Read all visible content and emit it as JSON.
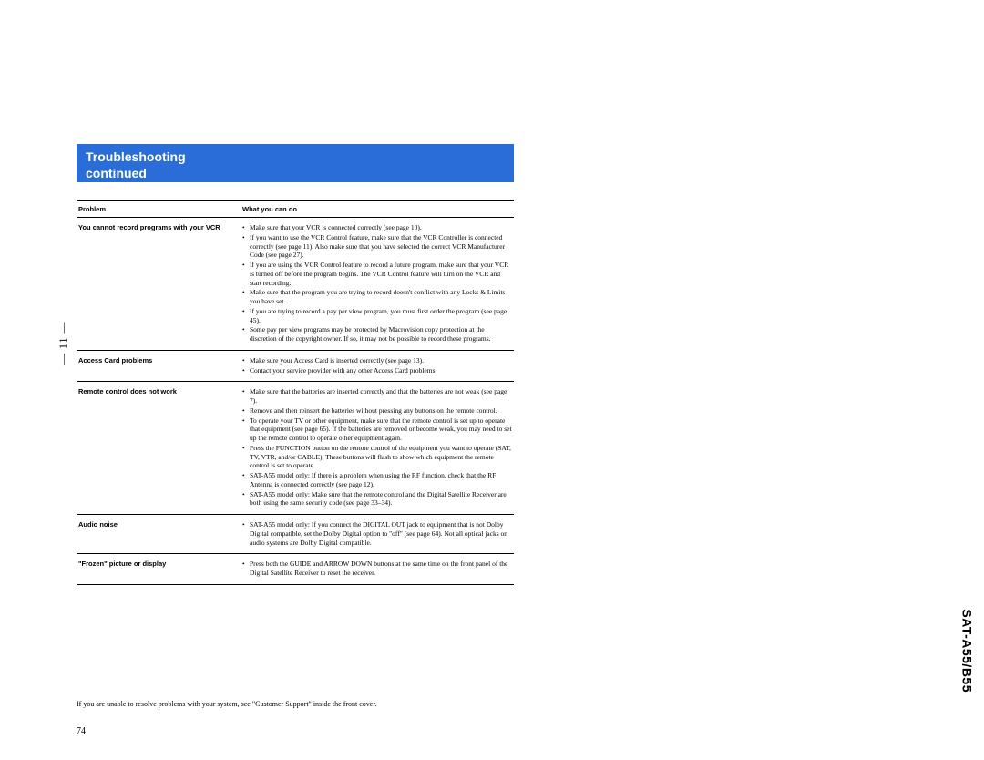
{
  "banner": {
    "line1": "Troubleshooting",
    "line2": "continued"
  },
  "table": {
    "headers": {
      "problem": "Problem",
      "solution": "What you can do"
    },
    "rows": [
      {
        "problem": "You cannot record programs with your VCR",
        "solutions": [
          "Make sure that your VCR is connected correctly (see page 10).",
          "If you want to use the VCR Control feature, make sure that the VCR Controller is connected correctly (see page 11). Also make sure that you have selected the correct VCR Manufacturer Code (see page 27).",
          "If you are using the VCR Control feature to record a future program, make sure that your VCR is turned off before the program begins. The VCR Control feature will turn on the VCR and start recording.",
          "Make sure that the program you are trying to record doesn't conflict with any Locks & Limits you have set.",
          "If you are trying to record a pay per view program, you must first order the program (see page 45).",
          "Some pay per view programs may be protected by Macrovision copy protection at the discretion of the copyright owner. If so, it may not be possible to record these programs."
        ]
      },
      {
        "problem": "Access Card problems",
        "solutions": [
          "Make sure your Access Card is inserted correctly (see page 13).",
          "Contact your service provider with any other Access Card problems."
        ]
      },
      {
        "problem": "Remote control does not work",
        "solutions": [
          "Make sure that the batteries are inserted correctly and that the batteries are not weak (see page 7).",
          "Remove and then reinsert the batteries without pressing any buttons on the remote control.",
          "To operate your TV or other equipment, make sure that the remote control is set up to operate that equipment (see page 65). If the batteries are removed or become weak, you may need to set up the remote control to operate other equipment again.",
          "Press the FUNCTION button on the remote control of the equipment you want to operate (SAT, TV, VTR, and/or CABLE). These buttons will flash to show which equipment the remote control is set to operate.",
          "SAT-A55 model only: If there is a problem when using the RF function, check that the RF Antenna is connected correctly (see page 12).",
          "SAT-A55 model only: Make sure that the remote control and the Digital Satellite Receiver are both using the same security code (see page 33–34)."
        ]
      },
      {
        "problem": "Audio noise",
        "solutions": [
          "SAT-A55 model only: If you connect the DIGITAL OUT jack to equipment that is not Dolby Digital compatible, set the Dolby Digital option to \"off\" (see page 64). Not all optical jacks on audio systems are Dolby Digital compatible."
        ]
      },
      {
        "problem": "\"Frozen\" picture or display",
        "solutions": [
          "Press both the GUIDE and ARROW DOWN buttons at the same time on the front panel of the Digital Satellite Receiver to reset the receiver."
        ]
      }
    ]
  },
  "footnote": "If you are unable to resolve problems with your system, see \"Customer Support\" inside the front cover.",
  "pagenum": "74",
  "side_label": "SAT-A55/B55",
  "binder": "— 11 —",
  "colors": {
    "banner_bg": "#2a6cd8",
    "banner_text": "#ffffff",
    "body_bg": "#ffffff",
    "text": "#000000"
  }
}
